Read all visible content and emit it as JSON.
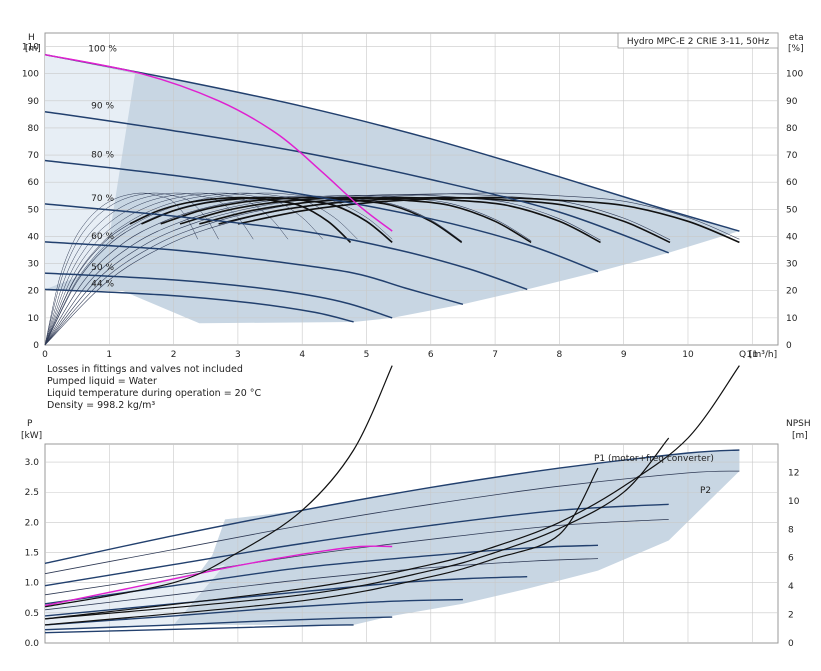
{
  "chart_data": [
    {
      "type": "line",
      "title": "Hydro MPC-E 2 CRIE 3-11, 50Hz",
      "ylabel": "H",
      "yunit": "[m]",
      "y2label": "eta",
      "y2unit": "[%]",
      "xlabel": "Q [m³/h]",
      "xlim": [
        0,
        11.4
      ],
      "ylim": [
        0,
        115
      ],
      "xticks": [
        "0",
        "1",
        "2",
        "3",
        "4",
        "5",
        "6",
        "7",
        "8",
        "9",
        "10",
        "11"
      ],
      "yticks": [
        "0",
        "10",
        "20",
        "30",
        "40",
        "50",
        "60",
        "70",
        "80",
        "90",
        "100",
        "110"
      ],
      "y2ticks": [
        "0",
        "10",
        "20",
        "30",
        "40",
        "50",
        "60",
        "70",
        "80",
        "90",
        "100"
      ],
      "grid": true,
      "speed_labels": [
        "100 %",
        "90 %",
        "80 %",
        "70 %",
        "60 %",
        "50 %",
        "44 %"
      ],
      "qh_curves_two_pumps": [
        {
          "name": "100 %",
          "x": [
            0,
            2,
            4,
            6,
            8,
            9.5,
            10.8
          ],
          "y": [
            107,
            98,
            88,
            76,
            62,
            51,
            42
          ]
        },
        {
          "name": "90 %",
          "x": [
            0,
            2,
            4,
            6,
            8,
            9.7
          ],
          "y": [
            86,
            79,
            71,
            61,
            49,
            34
          ]
        },
        {
          "name": "80 %",
          "x": [
            0,
            2,
            4,
            6,
            7.5,
            8.6
          ],
          "y": [
            68,
            62.5,
            55.5,
            46.5,
            37,
            27
          ]
        },
        {
          "name": "70 %",
          "x": [
            0,
            2,
            4,
            5.5,
            6.6,
            7.5
          ],
          "y": [
            52,
            47.5,
            42,
            35,
            28,
            20.5
          ]
        },
        {
          "name": "60 %",
          "x": [
            0,
            2,
            3.5,
            4.8,
            5.6,
            6.5
          ],
          "y": [
            38,
            35,
            31,
            26.5,
            21,
            15
          ]
        },
        {
          "name": "50 %",
          "x": [
            0,
            2,
            3.5,
            4.6,
            5.4
          ],
          "y": [
            26.5,
            24,
            20.5,
            16,
            10
          ]
        },
        {
          "name": "44 %",
          "x": [
            0,
            1.8,
            3.2,
            4.2,
            4.8
          ],
          "y": [
            20.5,
            18.5,
            15.5,
            12,
            8.5
          ]
        }
      ],
      "qh_curve_one_pump": {
        "x": [
          0,
          1.5,
          2.7,
          3.6,
          4.3,
          4.9,
          5.4
        ],
        "y": [
          107,
          100,
          90,
          78,
          64,
          51,
          42
        ]
      },
      "efficiency_curve": {
        "x": [
          0,
          1,
          2,
          3,
          4,
          5,
          6,
          7,
          8,
          9,
          10,
          10.8
        ],
        "y": [
          0,
          24,
          38,
          46,
          51,
          54,
          55.5,
          56,
          55,
          53,
          47,
          39
        ]
      }
    },
    {
      "type": "line",
      "ylabel": "P",
      "yunit": "[kW]",
      "y2label": "NPSH",
      "y2unit": "[m]",
      "xlim": [
        0,
        11.4
      ],
      "ylim": [
        0,
        3.3
      ],
      "yticks": [
        "0.0",
        "0.5",
        "1.0",
        "1.5",
        "2.0",
        "2.5",
        "3.0"
      ],
      "y2ticks": [
        "0",
        "2",
        "4",
        "6",
        "8",
        "10",
        "12"
      ],
      "grid": true,
      "series_labels": [
        "P1 (motor+freq converter)",
        "P2"
      ],
      "power_curves_p1": [
        {
          "x": [
            0,
            2,
            4,
            6,
            8,
            10,
            10.8
          ],
          "y": [
            1.32,
            1.78,
            2.2,
            2.58,
            2.9,
            3.15,
            3.2
          ]
        },
        {
          "x": [
            0,
            2,
            4,
            6,
            8,
            9.7
          ],
          "y": [
            0.95,
            1.3,
            1.65,
            1.95,
            2.2,
            2.3
          ]
        },
        {
          "x": [
            0,
            2,
            4,
            6,
            7.6,
            8.6
          ],
          "y": [
            0.65,
            0.95,
            1.25,
            1.45,
            1.58,
            1.62
          ]
        },
        {
          "x": [
            0,
            2,
            4,
            5.5,
            6.6,
            7.5
          ],
          "y": [
            0.45,
            0.65,
            0.85,
            1.0,
            1.07,
            1.1
          ]
        },
        {
          "x": [
            0,
            2,
            3.6,
            4.8,
            5.6,
            6.5
          ],
          "y": [
            0.3,
            0.45,
            0.58,
            0.66,
            0.7,
            0.72
          ]
        },
        {
          "x": [
            0,
            2,
            3.5,
            4.6,
            5.4
          ],
          "y": [
            0.22,
            0.3,
            0.37,
            0.41,
            0.43
          ]
        },
        {
          "x": [
            0,
            1.8,
            3.2,
            4.2,
            4.8
          ],
          "y": [
            0.17,
            0.22,
            0.26,
            0.29,
            0.3
          ]
        }
      ],
      "power_curves_p2": [
        {
          "x": [
            0,
            2,
            4,
            6,
            8,
            10,
            10.8
          ],
          "y": [
            1.15,
            1.55,
            1.95,
            2.3,
            2.6,
            2.82,
            2.85
          ]
        },
        {
          "x": [
            0,
            2,
            4,
            6,
            8,
            9.7
          ],
          "y": [
            0.8,
            1.12,
            1.45,
            1.72,
            1.95,
            2.05
          ]
        },
        {
          "x": [
            0,
            2,
            4,
            6,
            7.6,
            8.6
          ],
          "y": [
            0.55,
            0.8,
            1.05,
            1.25,
            1.36,
            1.4
          ]
        }
      ],
      "power_one_pump": {
        "x": [
          0,
          1.5,
          2.7,
          3.6,
          4.3,
          4.9,
          5.4
        ],
        "y": [
          0.62,
          0.95,
          1.22,
          1.4,
          1.52,
          1.6,
          1.6
        ]
      },
      "npsh_curves": [
        {
          "x": [
            0,
            2,
            3,
            4,
            4.8,
            5.4
          ],
          "y": [
            0.6,
            1.0,
            1.5,
            2.2,
            3.2,
            4.6
          ]
        },
        {
          "x": [
            0,
            4,
            6,
            7,
            8,
            9,
            10,
            10.8
          ],
          "y": [
            0.4,
            0.9,
            1.3,
            1.6,
            2.0,
            2.6,
            3.4,
            4.6
          ]
        },
        {
          "x": [
            0,
            4,
            6,
            7,
            8,
            9,
            9.7
          ],
          "y": [
            0.4,
            0.8,
            1.2,
            1.5,
            1.9,
            2.5,
            3.4
          ]
        },
        {
          "x": [
            0,
            4,
            6,
            7,
            8,
            8.6
          ],
          "y": [
            0.3,
            0.7,
            1.1,
            1.4,
            1.8,
            2.9
          ]
        }
      ]
    }
  ],
  "notes": [
    "Losses in fittings and valves not included",
    "Pumped liquid = Water",
    "Liquid temperature during operation = 20 °C",
    "Density = 998.2 kg/m³"
  ],
  "colors": {
    "shade": "#c8d6e3",
    "shade_light": "#e7eef5",
    "blue_curve": "#22406e",
    "thin_curve": "#2f3a55",
    "eff_curve": "#111111",
    "magenta": "#e020d0",
    "grid": "#c9c9c9"
  }
}
